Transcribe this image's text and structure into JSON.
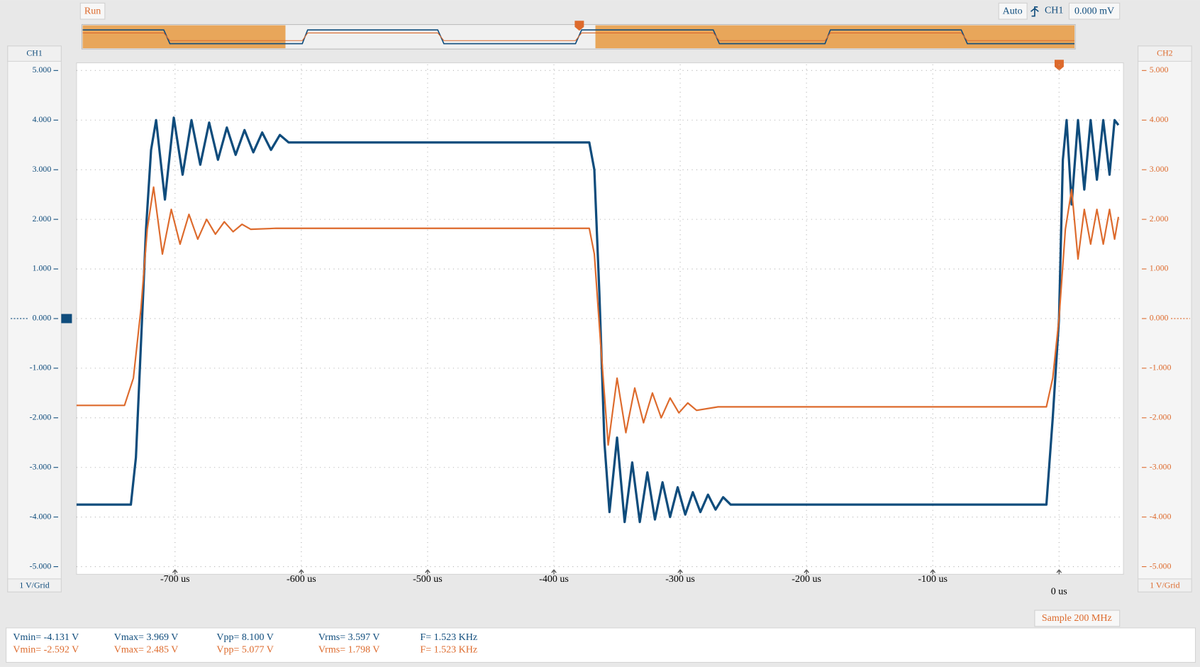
{
  "toolbar": {
    "status": "Run",
    "trigger_mode": "Auto",
    "trigger_source": "CH1",
    "trigger_level": "0.000 mV"
  },
  "chart_data": {
    "type": "line",
    "xlim": [
      -778,
      51
    ],
    "xticks": [
      {
        "value": -700,
        "label": "-700 us"
      },
      {
        "value": -600,
        "label": "-600 us"
      },
      {
        "value": -500,
        "label": "-500 us"
      },
      {
        "value": -400,
        "label": "-400 us"
      },
      {
        "value": -300,
        "label": "-300 us"
      },
      {
        "value": -200,
        "label": "-200 us"
      },
      {
        "value": -100,
        "label": "-100 us"
      },
      {
        "value": 0,
        "label": "0 us"
      }
    ],
    "ylim": [
      -5,
      5
    ],
    "yticks": [
      {
        "value": 5,
        "label": "5.000"
      },
      {
        "value": 4,
        "label": "4.000"
      },
      {
        "value": 3,
        "label": "3.000"
      },
      {
        "value": 2,
        "label": "2.000"
      },
      {
        "value": 1,
        "label": "1.000"
      },
      {
        "value": 0,
        "label": "0.000"
      },
      {
        "value": -1,
        "label": "-1.000"
      },
      {
        "value": -2,
        "label": "-2.000"
      },
      {
        "value": -3,
        "label": "-3.000"
      },
      {
        "value": -4,
        "label": "-4.000"
      },
      {
        "value": -5,
        "label": "-5.000"
      }
    ],
    "y2lim": [
      -5,
      5
    ],
    "y2ticks": [
      {
        "value": 5,
        "label": "5.000"
      },
      {
        "value": 4,
        "label": "4.000"
      },
      {
        "value": 3,
        "label": "3.000"
      },
      {
        "value": 2,
        "label": "2.000"
      },
      {
        "value": 1,
        "label": "1.000"
      },
      {
        "value": 0,
        "label": "0.000"
      },
      {
        "value": -1,
        "label": "-1.000"
      },
      {
        "value": -2,
        "label": "-2.000"
      },
      {
        "value": -3,
        "label": "-3.000"
      },
      {
        "value": -4,
        "label": "-4.000"
      },
      {
        "value": -5,
        "label": "-5.000"
      }
    ],
    "y_scale": "1 V/Grid",
    "y2_scale": "1 V/Grid",
    "grid": true,
    "series": [
      {
        "name": "CH1",
        "color": "#0f4c7c",
        "x": [
          -778,
          -735,
          -731,
          -727,
          -723,
          -719,
          -715,
          -708,
          -701,
          -694,
          -687,
          -680,
          -673,
          -666,
          -659,
          -652,
          -645,
          -638,
          -631,
          -624,
          -617,
          -610,
          -372,
          -368,
          -364,
          -360,
          -356,
          -350,
          -344,
          -338,
          -332,
          -326,
          -320,
          -314,
          -308,
          -302,
          -296,
          -290,
          -284,
          -278,
          -272,
          -266,
          -260,
          -250,
          -10,
          -5,
          0,
          3,
          6,
          10,
          15,
          20,
          25,
          30,
          35,
          40,
          44,
          47
        ],
        "values": [
          -3.75,
          -3.75,
          -2.8,
          -0.5,
          1.8,
          3.4,
          4.0,
          2.4,
          4.05,
          2.9,
          4.0,
          3.1,
          3.95,
          3.2,
          3.85,
          3.3,
          3.8,
          3.35,
          3.75,
          3.4,
          3.7,
          3.55,
          3.55,
          3.0,
          0.5,
          -2.5,
          -3.9,
          -2.4,
          -4.1,
          -2.9,
          -4.1,
          -3.1,
          -4.05,
          -3.3,
          -4.0,
          -3.4,
          -3.95,
          -3.5,
          -3.9,
          -3.55,
          -3.85,
          -3.6,
          -3.75,
          -3.75,
          -3.75,
          -2.0,
          0,
          3.2,
          4.0,
          2.3,
          4.0,
          2.6,
          4.0,
          2.8,
          4.0,
          2.9,
          4.0,
          3.9
        ]
      },
      {
        "name": "CH2",
        "color": "#dd6a2c",
        "axis": "y2",
        "x": [
          -778,
          -740,
          -733,
          -727,
          -722,
          -717,
          -710,
          -703,
          -696,
          -689,
          -682,
          -675,
          -668,
          -661,
          -654,
          -647,
          -640,
          -620,
          -372,
          -368,
          -363,
          -357,
          -350,
          -343,
          -336,
          -329,
          -322,
          -315,
          -308,
          -301,
          -294,
          -287,
          -270,
          -10,
          -5,
          0,
          5,
          10,
          15,
          20,
          25,
          30,
          35,
          40,
          44,
          47
        ],
        "values": [
          -1.75,
          -1.75,
          -1.2,
          0.2,
          1.8,
          2.65,
          1.3,
          2.2,
          1.5,
          2.1,
          1.6,
          2.0,
          1.7,
          1.95,
          1.75,
          1.9,
          1.8,
          1.82,
          1.82,
          1.3,
          -0.5,
          -2.55,
          -1.2,
          -2.3,
          -1.4,
          -2.1,
          -1.5,
          -2.0,
          -1.6,
          -1.9,
          -1.7,
          -1.85,
          -1.78,
          -1.78,
          -1.2,
          0,
          1.8,
          2.6,
          1.2,
          2.2,
          1.5,
          2.2,
          1.5,
          2.2,
          1.6,
          2.05
        ]
      }
    ]
  },
  "sample_rate": "Sample 200 MHz",
  "measurements": [
    [
      "Vmin= -4.131 V",
      "Vmax= 3.969 V",
      "Vpp= 8.100 V",
      "Vrms= 3.597 V",
      "F= 1.523 KHz"
    ],
    [
      "Vmin= -2.592 V",
      "Vmax= 2.485 V",
      "Vpp= 5.077 V",
      "Vrms= 1.798 V",
      "F= 1.523 KHz"
    ]
  ]
}
